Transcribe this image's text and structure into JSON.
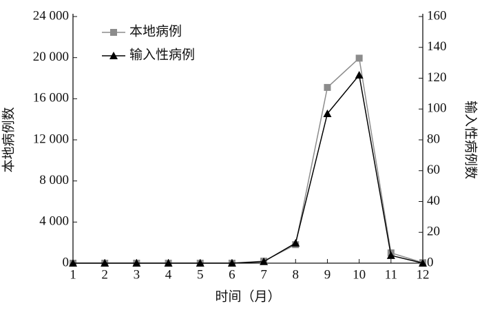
{
  "chart_data": {
    "type": "line",
    "xlabel": "时间（月）",
    "ylabel": "本地病例数",
    "y2label": "输入性病例数",
    "x": [
      1,
      2,
      3,
      4,
      5,
      6,
      7,
      8,
      9,
      10,
      11,
      12
    ],
    "xlim": [
      1,
      12
    ],
    "xticks": [
      1,
      2,
      3,
      4,
      5,
      6,
      7,
      8,
      9,
      10,
      11,
      12
    ],
    "ylim": [
      0,
      24000
    ],
    "yticks": [
      0,
      {
        "value": 4000,
        "label": "4 000"
      },
      {
        "value": 8000,
        "label": "8 000"
      },
      {
        "value": 12000,
        "label": "12 000"
      },
      {
        "value": 16000,
        "label": "16 000"
      },
      {
        "value": 20000,
        "label": "20 000"
      },
      {
        "value": 24000,
        "label": "24 000"
      }
    ],
    "y2lim": [
      0,
      160
    ],
    "y2ticks": [
      0,
      20,
      40,
      60,
      80,
      100,
      120,
      140,
      160
    ],
    "legend": "upper left",
    "series": [
      {
        "name": "本地病例",
        "color": "#8c8c8c",
        "marker": "square",
        "axis": "y",
        "values": [
          0,
          0,
          0,
          0,
          0,
          0,
          200,
          1800,
          17100,
          19950,
          1000,
          50
        ]
      },
      {
        "name": "输入性病例",
        "color": "#000000",
        "marker": "triangle",
        "axis": "y2",
        "values": [
          0,
          0,
          0,
          0,
          0,
          0,
          1,
          13,
          97,
          122,
          5,
          0
        ]
      }
    ]
  }
}
